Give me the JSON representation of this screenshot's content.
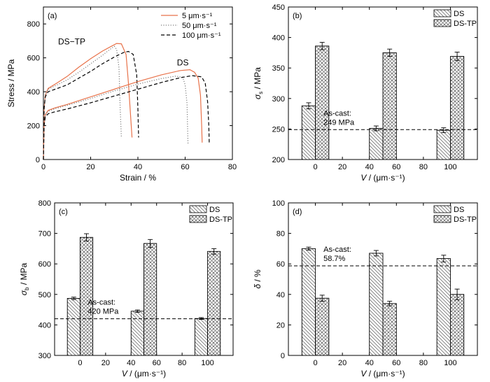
{
  "chart_data": [
    {
      "id": "a",
      "type": "line",
      "panel_label": "(a)",
      "xlabel": "Strain / %",
      "ylabel": "Stress / MPa",
      "xlim": [
        0,
        80
      ],
      "ylim": [
        0,
        900
      ],
      "xticks": [
        0,
        20,
        40,
        60,
        80
      ],
      "yticks": [
        0,
        200,
        400,
        600,
        800
      ],
      "legend": [
        {
          "label": "5 μm·s⁻¹",
          "style": "solid",
          "color": "#e8724a"
        },
        {
          "label": "50 μm·s⁻¹",
          "style": "dotted",
          "color": "#7a7a7a"
        },
        {
          "label": "100 μm·s⁻¹",
          "style": "dashed",
          "color": "#000000"
        }
      ],
      "annotations": [
        {
          "text": "DS−TP",
          "x": 12,
          "y": 680
        },
        {
          "text": "DS",
          "x": 59,
          "y": 555
        }
      ],
      "series": [
        {
          "group": "DS-TP",
          "rate": "5",
          "style": "solid",
          "color": "#e8724a",
          "points": [
            [
              0,
              0
            ],
            [
              0.3,
              300
            ],
            [
              0.8,
              380
            ],
            [
              2,
              420
            ],
            [
              5,
              445
            ],
            [
              10,
              490
            ],
            [
              15,
              545
            ],
            [
              20,
              595
            ],
            [
              25,
              640
            ],
            [
              29,
              670
            ],
            [
              31,
              685
            ],
            [
              33,
              683
            ],
            [
              35,
              620
            ],
            [
              36,
              450
            ],
            [
              37.5,
              130
            ]
          ]
        },
        {
          "group": "DS-TP",
          "rate": "50",
          "style": "dotted",
          "color": "#7a7a7a",
          "points": [
            [
              0,
              0
            ],
            [
              0.3,
              300
            ],
            [
              0.8,
              380
            ],
            [
              2,
              415
            ],
            [
              5,
              435
            ],
            [
              10,
              470
            ],
            [
              15,
              515
            ],
            [
              20,
              565
            ],
            [
              25,
              615
            ],
            [
              28,
              648
            ],
            [
              30,
              668
            ],
            [
              31,
              650
            ],
            [
              32,
              540
            ],
            [
              32.5,
              300
            ],
            [
              33,
              130
            ]
          ]
        },
        {
          "group": "DS-TP",
          "rate": "100",
          "style": "dashed",
          "color": "#000000",
          "points": [
            [
              0,
              0
            ],
            [
              0.3,
              300
            ],
            [
              0.8,
              370
            ],
            [
              2,
              400
            ],
            [
              5,
              415
            ],
            [
              10,
              440
            ],
            [
              15,
              480
            ],
            [
              20,
              520
            ],
            [
              25,
              565
            ],
            [
              30,
              605
            ],
            [
              34,
              632
            ],
            [
              36,
              638
            ],
            [
              38,
              620
            ],
            [
              39.5,
              500
            ],
            [
              40,
              300
            ],
            [
              40.3,
              130
            ]
          ]
        },
        {
          "group": "DS",
          "rate": "5",
          "style": "solid",
          "color": "#e8724a",
          "points": [
            [
              0,
              0
            ],
            [
              0.3,
              200
            ],
            [
              0.8,
              265
            ],
            [
              2,
              290
            ],
            [
              5,
              305
            ],
            [
              10,
              325
            ],
            [
              20,
              370
            ],
            [
              30,
              415
            ],
            [
              40,
              460
            ],
            [
              50,
              500
            ],
            [
              58,
              525
            ],
            [
              62,
              530
            ],
            [
              64,
              515
            ],
            [
              65.5,
              480
            ],
            [
              66.5,
              380
            ],
            [
              67,
              200
            ],
            [
              67.2,
              100
            ]
          ]
        },
        {
          "group": "DS",
          "rate": "50",
          "style": "dotted",
          "color": "#7a7a7a",
          "points": [
            [
              0,
              0
            ],
            [
              0.3,
              200
            ],
            [
              0.8,
              260
            ],
            [
              2,
              285
            ],
            [
              5,
              300
            ],
            [
              10,
              320
            ],
            [
              20,
              360
            ],
            [
              30,
              405
            ],
            [
              40,
              445
            ],
            [
              50,
              478
            ],
            [
              56,
              492
            ],
            [
              59,
              485
            ],
            [
              60,
              440
            ],
            [
              60.8,
              330
            ],
            [
              61,
              200
            ],
            [
              61.2,
              90
            ]
          ]
        },
        {
          "group": "DS",
          "rate": "100",
          "style": "dashed",
          "color": "#000000",
          "points": [
            [
              0,
              0
            ],
            [
              0.3,
              200
            ],
            [
              0.8,
              250
            ],
            [
              2,
              270
            ],
            [
              5,
              282
            ],
            [
              10,
              298
            ],
            [
              20,
              335
            ],
            [
              30,
              375
            ],
            [
              40,
              415
            ],
            [
              50,
              455
            ],
            [
              58,
              483
            ],
            [
              63,
              495
            ],
            [
              67,
              488
            ],
            [
              68.5,
              450
            ],
            [
              69.5,
              340
            ],
            [
              70,
              200
            ],
            [
              70.2,
              100
            ]
          ]
        }
      ]
    },
    {
      "id": "b",
      "type": "bar",
      "panel_label": "(b)",
      "xlabel": "V / (μm·s⁻¹)",
      "ylabel_main": "σ",
      "ylabel_sub": "s",
      "ylabel_unit": " / MPa",
      "xlim": [
        -20,
        120
      ],
      "ylim": [
        200,
        450
      ],
      "xticks": [
        0,
        20,
        40,
        60,
        80,
        100
      ],
      "yticks": [
        200,
        250,
        300,
        350,
        400,
        450
      ],
      "ascast": {
        "line1": "As-cast:",
        "line2": "249 MPa",
        "value": 249
      },
      "legend": [
        "DS",
        "DS-TP"
      ],
      "categories": [
        0,
        50,
        100
      ],
      "series": [
        {
          "name": "DS",
          "values": [
            288,
            251,
            248
          ],
          "errors": [
            5,
            4,
            4
          ]
        },
        {
          "name": "DS-TP",
          "values": [
            386,
            375,
            369
          ],
          "errors": [
            6,
            6,
            7
          ]
        }
      ]
    },
    {
      "id": "c",
      "type": "bar",
      "panel_label": "(c)",
      "xlabel": "V / (μm·s⁻¹)",
      "ylabel_main": "σ",
      "ylabel_sub": "b",
      "ylabel_unit": " / MPa",
      "xlim": [
        -20,
        120
      ],
      "ylim": [
        300,
        800
      ],
      "xticks": [
        0,
        20,
        40,
        60,
        80,
        100
      ],
      "yticks": [
        300,
        400,
        500,
        600,
        700,
        800
      ],
      "ascast": {
        "line1": "As-cast:",
        "line2": "420 MPa",
        "value": 420
      },
      "legend": [
        "DS",
        "DS-TP"
      ],
      "categories": [
        0,
        50,
        100
      ],
      "series": [
        {
          "name": "DS",
          "values": [
            487,
            445,
            421
          ],
          "errors": [
            4,
            4,
            3
          ]
        },
        {
          "name": "DS-TP",
          "values": [
            687,
            667,
            641
          ],
          "errors": [
            12,
            13,
            9
          ]
        }
      ]
    },
    {
      "id": "d",
      "type": "bar",
      "panel_label": "(d)",
      "xlabel": "V / (μm·s⁻¹)",
      "ylabel_main": "δ",
      "ylabel_sub": "",
      "ylabel_unit": " / %",
      "xlim": [
        -20,
        120
      ],
      "ylim": [
        0,
        100
      ],
      "xticks": [
        0,
        20,
        40,
        60,
        80,
        100
      ],
      "yticks": [
        0,
        20,
        40,
        60,
        80,
        100
      ],
      "ascast": {
        "line1": "As-cast:",
        "line2": "58.7%",
        "value": 58.7
      },
      "legend": [
        "DS",
        "DS-TP"
      ],
      "categories": [
        0,
        50,
        100
      ],
      "series": [
        {
          "name": "DS",
          "values": [
            70,
            67,
            63.5
          ],
          "errors": [
            1,
            1.8,
            2.2
          ]
        },
        {
          "name": "DS-TP",
          "values": [
            37.5,
            34,
            40
          ],
          "errors": [
            2,
            1.5,
            3.5
          ]
        }
      ]
    }
  ]
}
